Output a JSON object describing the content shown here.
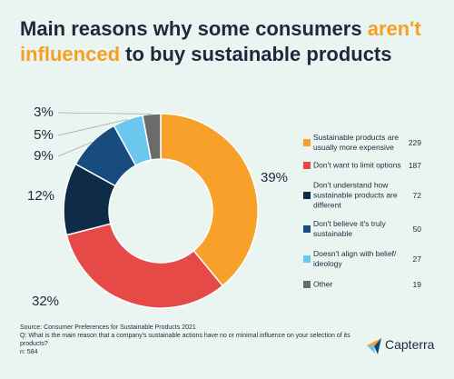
{
  "chart_data": {
    "type": "donut",
    "title_parts": [
      {
        "text": "Main reasons why some consumers ",
        "color": "#1b2a3c"
      },
      {
        "text": "aren't influenced",
        "color": "#f5a021"
      },
      {
        "text": " to buy sustainable products",
        "color": "#1b2a3c"
      }
    ],
    "categories": [
      "Sustainable products are usually more expensive",
      "Don't want to limit options",
      "Don't understand how sustainable products are different",
      "Don't believe it's truly sustainable",
      "Doesn't align with belief/ ideology",
      "Other"
    ],
    "values": [
      39,
      32,
      12,
      9,
      5,
      3
    ],
    "value_labels": [
      "39%",
      "32%",
      "12%",
      "9%",
      "5%",
      "3%"
    ],
    "counts": [
      229,
      187,
      72,
      50,
      27,
      19
    ],
    "colors": [
      "#f8a12a",
      "#e54a47",
      "#0e2b47",
      "#194c7e",
      "#6ac8ee",
      "#6b6b6b"
    ]
  },
  "footer": {
    "source": "Source: Consumer Preferences for Sustainable Products 2021",
    "question": "Q: What is the main reason that a company's sustainable actions have no or minimal influence on your selection of its products?",
    "n": "n: 584",
    "brand": "Capterra"
  }
}
